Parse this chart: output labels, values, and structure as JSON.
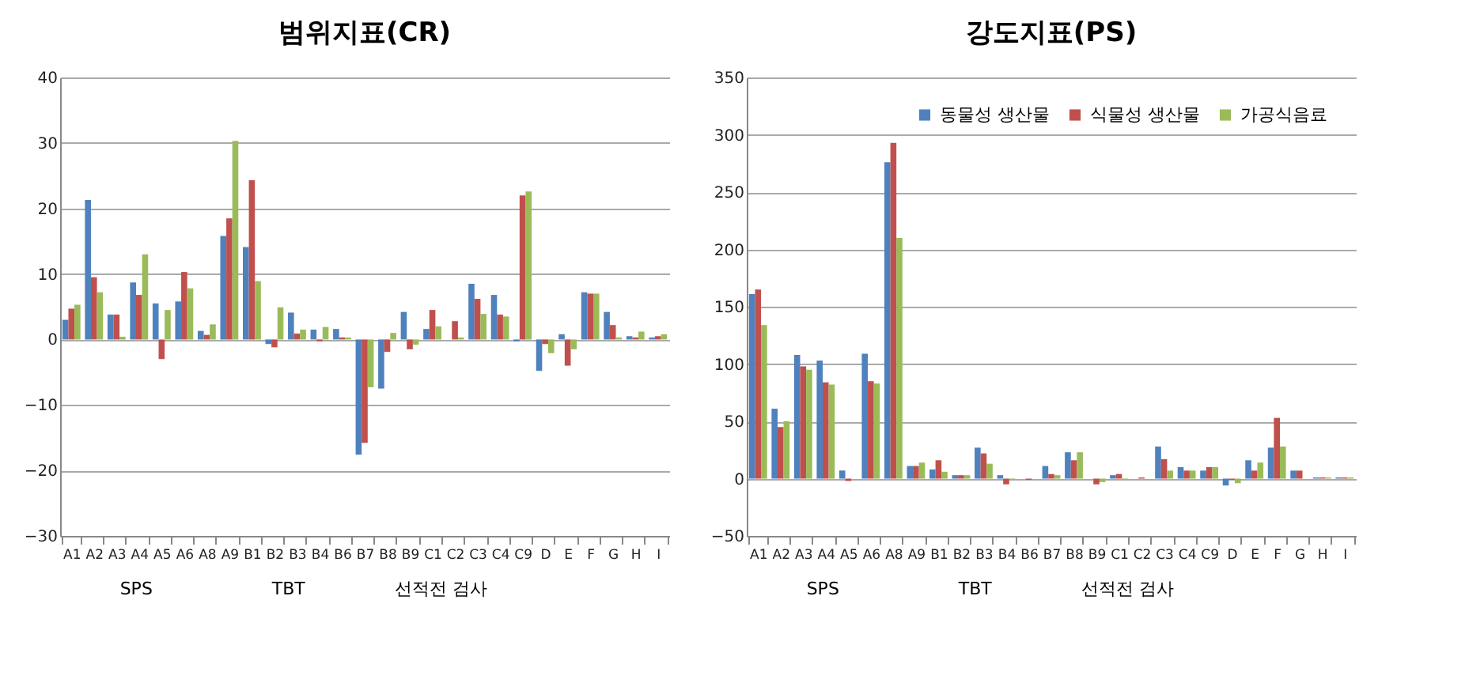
{
  "chart_data": [
    {
      "type": "bar",
      "title": "범위지표(CR)",
      "categories": [
        "A1",
        "A2",
        "A3",
        "A4",
        "A5",
        "A6",
        "A8",
        "A9",
        "B1",
        "B2",
        "B3",
        "B4",
        "B6",
        "B7",
        "B8",
        "B9",
        "C1",
        "C2",
        "C3",
        "C4",
        "C9",
        "D",
        "E",
        "F",
        "G",
        "H",
        "I"
      ],
      "series": [
        {
          "color": "#4f81bd",
          "values": [
            3,
            21.3,
            3.8,
            8.7,
            5.5,
            5.8,
            1.3,
            15.8,
            14.1,
            -0.7,
            4.1,
            1.5,
            1.6,
            -17.6,
            -7.5,
            4.2,
            1.6,
            0,
            8.5,
            6.8,
            -0.3,
            -4.8,
            0.8,
            7.2,
            4.2,
            0.5,
            0.3
          ]
        },
        {
          "color": "#c0504d",
          "values": [
            4.7,
            9.5,
            3.8,
            6.8,
            -3,
            10.3,
            0.7,
            18.5,
            24.3,
            -1.2,
            0.9,
            -0.3,
            0.3,
            -15.8,
            -1.9,
            -1.5,
            4.5,
            2.8,
            6.2,
            3.8,
            22,
            -0.7,
            -4,
            7,
            2.2,
            0.3,
            0.5
          ]
        },
        {
          "color": "#9bbb59",
          "values": [
            5.3,
            7.2,
            0.4,
            13,
            4.5,
            7.8,
            2.3,
            30.3,
            8.9,
            4.9,
            1.5,
            1.9,
            0.3,
            -7.3,
            1,
            -0.8,
            2,
            0.3,
            3.9,
            3.5,
            22.6,
            -2.1,
            -1.5,
            7,
            0.3,
            1.2,
            0.8
          ]
        }
      ],
      "ylim": [
        -30,
        40
      ],
      "yticks": [
        -30,
        -20,
        -10,
        0,
        10,
        20,
        30,
        40
      ],
      "grid": "y",
      "annotations": [
        "SPS",
        "TBT",
        "선적전 검사"
      ]
    },
    {
      "type": "bar",
      "title": "강도지표(PS)",
      "categories": [
        "A1",
        "A2",
        "A3",
        "A4",
        "A5",
        "A6",
        "A8",
        "A9",
        "B1",
        "B2",
        "B3",
        "B4",
        "B6",
        "B7",
        "B8",
        "B9",
        "C1",
        "C2",
        "C3",
        "C4",
        "C9",
        "D",
        "E",
        "F",
        "G",
        "H",
        "I"
      ],
      "series": [
        {
          "name": "동물성 생산물",
          "color": "#4f81bd",
          "values": [
            161,
            61,
            108,
            103,
            7,
            109,
            276,
            11,
            8,
            3,
            27,
            3,
            0,
            11,
            23,
            0,
            3,
            0,
            28,
            10,
            7,
            -6,
            16,
            27,
            7,
            1,
            1
          ]
        },
        {
          "name": "식물성 생산물",
          "color": "#c0504d",
          "values": [
            165,
            45,
            98,
            84,
            -2,
            85,
            293,
            11,
            16,
            3,
            22,
            -5,
            -1,
            4,
            16,
            -5,
            4,
            1,
            17,
            7,
            10,
            -1,
            7,
            53,
            7,
            1,
            1
          ]
        },
        {
          "name": "가공식음료",
          "color": "#9bbb59",
          "values": [
            134,
            50,
            95,
            82,
            0,
            83,
            210,
            14,
            6,
            3,
            13,
            -1,
            0,
            3,
            23,
            -3,
            -1,
            0,
            7,
            7,
            10,
            -4,
            14,
            28,
            0,
            1,
            1
          ]
        }
      ],
      "ylim": [
        -50,
        350
      ],
      "yticks": [
        -50,
        0,
        50,
        100,
        150,
        200,
        250,
        300,
        350
      ],
      "grid": "y",
      "legend": "top right",
      "annotations": [
        "SPS",
        "TBT",
        "선적전 검사"
      ]
    }
  ]
}
